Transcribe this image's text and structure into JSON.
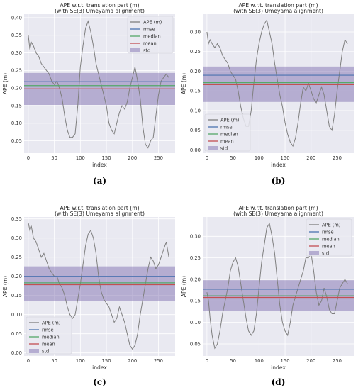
{
  "chart_data": [
    {
      "type": "line",
      "title": "APE w.r.t. translation part (m)",
      "subtitle": "(with SE(3) Umeyama alignment)",
      "xlabel": "index",
      "ylabel": "APE (m)",
      "caption": "(a)",
      "xlim": [
        -8,
        282
      ],
      "ylim": [
        0.015,
        0.41
      ],
      "xticks": [
        0,
        50,
        100,
        150,
        200,
        250
      ],
      "yticks": [
        0.05,
        0.1,
        0.15,
        0.2,
        0.25,
        0.3,
        0.35,
        0.4
      ],
      "ytick_labels": [
        "0.05",
        "0.10",
        "0.15",
        "0.20",
        "0.25",
        "0.30",
        "0.35",
        "0.40"
      ],
      "legend": {
        "position": "top-right",
        "entries": [
          "APE (m)",
          "rmse",
          "median",
          "mean",
          "std"
        ]
      },
      "grid": true,
      "stats": {
        "rmse": 0.218,
        "median": 0.207,
        "mean": 0.198,
        "std_low": 0.152,
        "std_high": 0.243
      },
      "series": [
        {
          "name": "APE (m)",
          "x": [
            0,
            3,
            6,
            10,
            15,
            20,
            25,
            30,
            35,
            40,
            45,
            50,
            55,
            60,
            65,
            70,
            75,
            80,
            85,
            90,
            95,
            100,
            105,
            110,
            115,
            120,
            125,
            130,
            135,
            140,
            145,
            150,
            155,
            160,
            165,
            170,
            175,
            180,
            185,
            190,
            195,
            200,
            205,
            210,
            215,
            220,
            225,
            230,
            235,
            240,
            245,
            250,
            255,
            260,
            265,
            270
          ],
          "y": [
            0.35,
            0.31,
            0.33,
            0.32,
            0.3,
            0.29,
            0.27,
            0.26,
            0.25,
            0.24,
            0.22,
            0.21,
            0.22,
            0.2,
            0.17,
            0.12,
            0.08,
            0.06,
            0.06,
            0.07,
            0.15,
            0.26,
            0.32,
            0.37,
            0.39,
            0.36,
            0.32,
            0.27,
            0.24,
            0.21,
            0.18,
            0.15,
            0.1,
            0.08,
            0.07,
            0.1,
            0.13,
            0.15,
            0.14,
            0.16,
            0.2,
            0.23,
            0.26,
            0.22,
            0.17,
            0.09,
            0.04,
            0.03,
            0.05,
            0.06,
            0.12,
            0.18,
            0.22,
            0.23,
            0.24,
            0.23
          ]
        }
      ]
    },
    {
      "type": "line",
      "title": "APE w.r.t. translation part (m)",
      "subtitle": "(with SE(3) Umeyama alignment)",
      "xlabel": "index",
      "ylabel": "APE (m)",
      "caption": "(b)",
      "xlim": [
        -8,
        282
      ],
      "ylim": [
        -0.008,
        0.345
      ],
      "xticks": [
        0,
        50,
        100,
        150,
        200,
        250
      ],
      "yticks": [
        0.0,
        0.05,
        0.1,
        0.15,
        0.2,
        0.25,
        0.3
      ],
      "ytick_labels": [
        "0.00",
        "0.05",
        "0.10",
        "0.15",
        "0.20",
        "0.25",
        "0.30"
      ],
      "legend": {
        "position": "bottom-left",
        "entries": [
          "APE (m)",
          "rmse",
          "median",
          "mean",
          "std"
        ]
      },
      "grid": true,
      "stats": {
        "rmse": 0.19,
        "median": 0.171,
        "mean": 0.166,
        "std_low": 0.122,
        "std_high": 0.212
      },
      "series": [
        {
          "name": "APE (m)",
          "x": [
            0,
            3,
            6,
            10,
            15,
            20,
            25,
            30,
            35,
            40,
            45,
            50,
            55,
            60,
            65,
            70,
            75,
            80,
            85,
            90,
            95,
            100,
            105,
            110,
            115,
            120,
            125,
            130,
            135,
            140,
            145,
            150,
            155,
            160,
            165,
            170,
            175,
            180,
            185,
            190,
            195,
            200,
            205,
            210,
            215,
            220,
            225,
            230,
            235,
            240,
            245,
            250,
            255,
            260,
            265,
            270
          ],
          "y": [
            0.3,
            0.27,
            0.28,
            0.27,
            0.26,
            0.27,
            0.26,
            0.24,
            0.23,
            0.22,
            0.2,
            0.19,
            0.18,
            0.15,
            0.11,
            0.08,
            0.06,
            0.06,
            0.1,
            0.17,
            0.23,
            0.27,
            0.3,
            0.32,
            0.33,
            0.3,
            0.27,
            0.22,
            0.18,
            0.14,
            0.11,
            0.07,
            0.04,
            0.02,
            0.01,
            0.03,
            0.07,
            0.12,
            0.16,
            0.15,
            0.17,
            0.15,
            0.13,
            0.12,
            0.14,
            0.16,
            0.14,
            0.1,
            0.06,
            0.05,
            0.09,
            0.15,
            0.2,
            0.25,
            0.28,
            0.27
          ]
        }
      ]
    },
    {
      "type": "line",
      "title": "APE w.r.t. translation part (m)",
      "subtitle": "(with SE(3) Umeyama alignment)",
      "xlabel": "index",
      "ylabel": "APE (m)",
      "caption": "(c)",
      "xlim": [
        -8,
        282
      ],
      "ylim": [
        -0.008,
        0.355
      ],
      "xticks": [
        0,
        50,
        100,
        150,
        200,
        250
      ],
      "yticks": [
        0.0,
        0.05,
        0.1,
        0.15,
        0.2,
        0.25,
        0.3,
        0.35
      ],
      "ytick_labels": [
        "0.00",
        "0.05",
        "0.10",
        "0.15",
        "0.20",
        "0.25",
        "0.30",
        "0.35"
      ],
      "legend": {
        "position": "bottom-left",
        "entries": [
          "APE (m)",
          "rmse",
          "median",
          "mean",
          "std"
        ]
      },
      "grid": true,
      "stats": {
        "rmse": 0.2,
        "median": 0.183,
        "mean": 0.178,
        "std_low": 0.135,
        "std_high": 0.226
      },
      "series": [
        {
          "name": "APE (m)",
          "x": [
            0,
            3,
            6,
            10,
            15,
            20,
            25,
            30,
            35,
            40,
            45,
            50,
            55,
            60,
            65,
            70,
            75,
            80,
            85,
            90,
            95,
            100,
            105,
            110,
            115,
            120,
            125,
            130,
            135,
            140,
            145,
            150,
            155,
            160,
            165,
            170,
            175,
            180,
            185,
            190,
            195,
            200,
            205,
            210,
            215,
            220,
            225,
            230,
            235,
            240,
            245,
            250,
            255,
            260,
            265,
            270
          ],
          "y": [
            0.34,
            0.32,
            0.33,
            0.3,
            0.29,
            0.27,
            0.25,
            0.26,
            0.24,
            0.22,
            0.21,
            0.2,
            0.2,
            0.18,
            0.17,
            0.15,
            0.12,
            0.1,
            0.09,
            0.1,
            0.14,
            0.18,
            0.23,
            0.28,
            0.31,
            0.32,
            0.3,
            0.26,
            0.2,
            0.16,
            0.14,
            0.13,
            0.12,
            0.1,
            0.08,
            0.09,
            0.12,
            0.1,
            0.08,
            0.05,
            0.02,
            0.01,
            0.02,
            0.05,
            0.1,
            0.14,
            0.18,
            0.22,
            0.25,
            0.24,
            0.22,
            0.23,
            0.25,
            0.27,
            0.29,
            0.25
          ]
        }
      ]
    },
    {
      "type": "line",
      "title": "APE w.r.t. translation part (m)",
      "subtitle": "(with SE(3) Umeyama alignment)",
      "xlabel": "index",
      "ylabel": "APE (m)",
      "caption": "(d)",
      "xlim": [
        -8,
        282
      ],
      "ylim": [
        0.022,
        0.345
      ],
      "xticks": [
        0,
        50,
        100,
        150,
        200,
        250
      ],
      "yticks": [
        0.05,
        0.1,
        0.15,
        0.2,
        0.25,
        0.3
      ],
      "ytick_labels": [
        "0.05",
        "0.10",
        "0.15",
        "0.20",
        "0.25",
        "0.30"
      ],
      "legend": {
        "position": "top-right",
        "entries": [
          "APE (m)",
          "rmse",
          "median",
          "mean",
          "std"
        ]
      },
      "grid": true,
      "stats": {
        "rmse": 0.177,
        "median": 0.162,
        "mean": 0.158,
        "std_low": 0.126,
        "std_high": 0.198
      },
      "series": [
        {
          "name": "APE (m)",
          "x": [
            0,
            3,
            6,
            10,
            15,
            20,
            25,
            30,
            35,
            40,
            45,
            50,
            55,
            60,
            65,
            70,
            75,
            80,
            85,
            90,
            95,
            100,
            105,
            110,
            115,
            120,
            125,
            130,
            135,
            140,
            145,
            150,
            155,
            160,
            165,
            170,
            175,
            180,
            185,
            190,
            195,
            200,
            205,
            210,
            215,
            220,
            225,
            230,
            235,
            240,
            245,
            250,
            255,
            260,
            265,
            270
          ],
          "y": [
            0.17,
            0.15,
            0.11,
            0.07,
            0.04,
            0.05,
            0.08,
            0.12,
            0.15,
            0.18,
            0.22,
            0.24,
            0.25,
            0.23,
            0.19,
            0.15,
            0.11,
            0.08,
            0.07,
            0.08,
            0.12,
            0.18,
            0.24,
            0.28,
            0.32,
            0.33,
            0.3,
            0.26,
            0.2,
            0.14,
            0.1,
            0.08,
            0.07,
            0.1,
            0.14,
            0.16,
            0.18,
            0.2,
            0.22,
            0.25,
            0.25,
            0.26,
            0.22,
            0.17,
            0.14,
            0.15,
            0.18,
            0.16,
            0.13,
            0.12,
            0.12,
            0.15,
            0.18,
            0.19,
            0.2,
            0.19
          ]
        }
      ]
    }
  ],
  "legend_labels": {
    "ape": "APE (m)",
    "rmse": "rmse",
    "median": "median",
    "mean": "mean",
    "std": "std"
  },
  "colors": {
    "background": "#e9e9f1",
    "grid": "#ffffff",
    "ape": "#7f7f7f",
    "rmse": "#4c72b0",
    "median": "#55a868",
    "mean": "#c44e52",
    "std": "#8172b2"
  }
}
